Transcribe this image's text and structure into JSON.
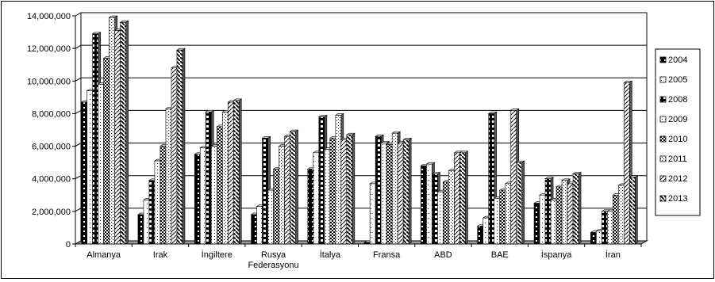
{
  "chart_data": {
    "type": "bar",
    "title": "",
    "xlabel": "",
    "ylabel": "",
    "ylim": [
      0,
      14000000
    ],
    "yticks": [
      "0",
      "2,000,000",
      "4,000,000",
      "6,000,000",
      "8,000,000",
      "10,000,000",
      "12,000,000",
      "14,000,000"
    ],
    "grid": true,
    "legend_position": "right",
    "categories": [
      [
        "Almanya"
      ],
      [
        "Irak"
      ],
      [
        "İngiltere"
      ],
      [
        "Rusya",
        "Federasyonu"
      ],
      [
        "İtalya"
      ],
      [
        "Fransa"
      ],
      [
        "ABD"
      ],
      [
        "BAE"
      ],
      [
        "İspanya"
      ],
      [
        "İran"
      ]
    ],
    "series": [
      {
        "name": "2004",
        "values": [
          8700000,
          1800000,
          5500000,
          1800000,
          4600000,
          100000,
          4800000,
          1100000,
          2500000,
          700000
        ]
      },
      {
        "name": "2005",
        "values": [
          9400000,
          2700000,
          5900000,
          2300000,
          5600000,
          3700000,
          4900000,
          1600000,
          3000000,
          800000
        ]
      },
      {
        "name": "2008",
        "values": [
          12900000,
          3900000,
          8100000,
          6500000,
          7800000,
          6600000,
          4300000,
          8000000,
          4000000,
          2000000
        ]
      },
      {
        "name": "2009",
        "values": [
          9800000,
          5100000,
          6000000,
          3300000,
          5800000,
          6200000,
          3200000,
          2800000,
          2700000,
          2000000
        ]
      },
      {
        "name": "2010",
        "values": [
          11400000,
          6000000,
          7200000,
          4600000,
          6500000,
          6100000,
          3800000,
          3300000,
          3500000,
          3000000
        ]
      },
      {
        "name": "2011",
        "values": [
          13900000,
          8300000,
          8100000,
          6000000,
          7900000,
          6800000,
          4500000,
          3700000,
          3900000,
          3600000
        ]
      },
      {
        "name": "2012",
        "values": [
          13100000,
          10800000,
          8700000,
          6600000,
          6400000,
          6200000,
          5600000,
          8200000,
          3700000,
          9900000
        ]
      },
      {
        "name": "2013",
        "values": [
          13600000,
          11900000,
          8800000,
          6900000,
          6700000,
          6400000,
          5600000,
          5000000,
          4300000,
          4100000
        ]
      }
    ]
  }
}
